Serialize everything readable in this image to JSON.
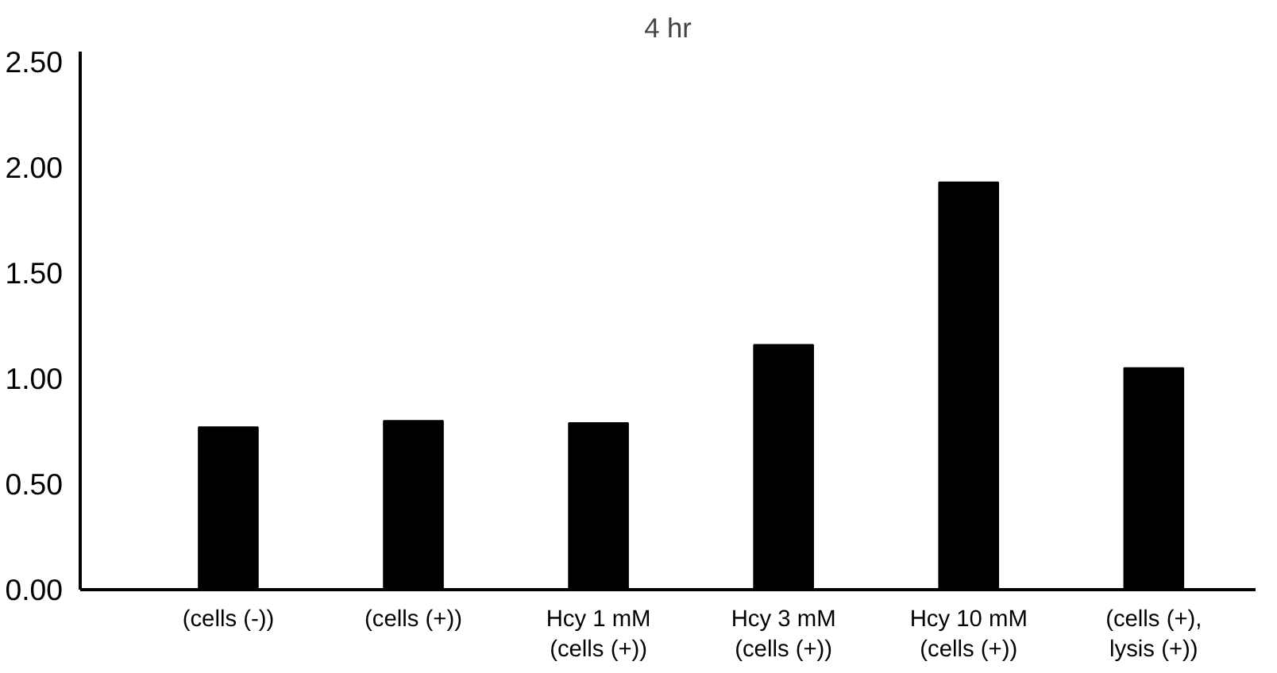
{
  "chart_data": {
    "type": "bar",
    "title": "4 hr",
    "categories": [
      "(cells (-))",
      "(cells (+))",
      "Hcy 1 mM\n(cells (+))",
      "Hcy 3 mM\n(cells (+))",
      "Hcy 10 mM\n(cells (+))",
      "(cells (+),\nlysis (+))"
    ],
    "values": [
      0.77,
      0.8,
      0.79,
      1.16,
      1.93,
      1.05
    ],
    "color": "#000000",
    "ylim": [
      0,
      2.55
    ],
    "yticks": [
      {
        "value": 0,
        "label": "0.00"
      },
      {
        "value": 0.5,
        "label": "0.50"
      },
      {
        "value": 1,
        "label": "1.00"
      },
      {
        "value": 1.5,
        "label": "1.50"
      },
      {
        "value": 2,
        "label": "2.00"
      },
      {
        "value": 2.5,
        "label": "2.50"
      }
    ],
    "grid": false
  }
}
